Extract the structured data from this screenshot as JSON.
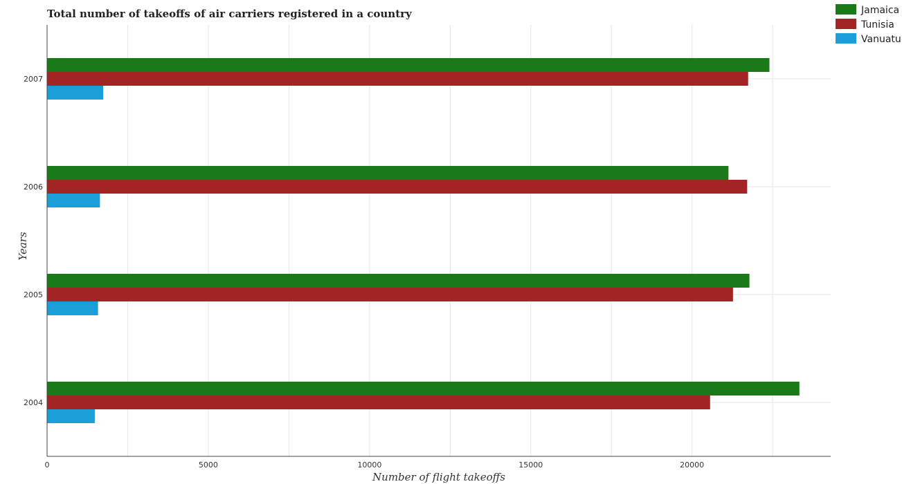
{
  "chart_data": {
    "type": "bar",
    "orientation": "horizontal",
    "title": "Total number of takeoffs of air carriers registered in a country",
    "xlabel": "Number of flight takeoffs",
    "ylabel": "Years",
    "categories": [
      "2004",
      "2005",
      "2006",
      "2007"
    ],
    "xlim": [
      0,
      24300
    ],
    "xticks": [
      0,
      5000,
      10000,
      15000,
      20000
    ],
    "grid": true,
    "legend_position": "top-right",
    "series": [
      {
        "name": "Jamaica",
        "color": "#1a7a1a",
        "values": [
          23330,
          21780,
          21130,
          22400
        ]
      },
      {
        "name": "Tunisia",
        "color": "#a32424",
        "values": [
          20560,
          21270,
          21710,
          21740
        ]
      },
      {
        "name": "Vanuatu",
        "color": "#1a9ed8",
        "values": [
          1480,
          1580,
          1640,
          1740
        ]
      }
    ]
  }
}
